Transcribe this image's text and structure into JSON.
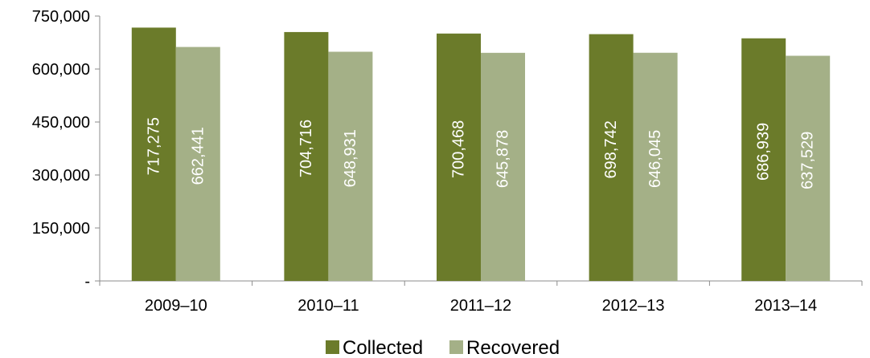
{
  "chart_data": {
    "type": "bar",
    "title": "",
    "xlabel": "",
    "ylabel": "",
    "categories": [
      "2009–10",
      "2010–11",
      "2011–12",
      "2012–13",
      "2013–14"
    ],
    "series": [
      {
        "name": "Collected",
        "color": "#6b7b2a",
        "values": [
          717275,
          704716,
          700468,
          698742,
          686939
        ],
        "labels": [
          "717,275",
          "704,716",
          "700,468",
          "698,742",
          "686,939"
        ]
      },
      {
        "name": "Recovered",
        "color": "#a4b087",
        "values": [
          662441,
          648931,
          645878,
          646045,
          637529
        ],
        "labels": [
          "662,441",
          "648,931",
          "645,878",
          "646,045",
          "637,529"
        ]
      }
    ],
    "ylim": [
      0,
      750000
    ],
    "yticks": [
      0,
      150000,
      300000,
      450000,
      600000,
      750000
    ],
    "ytick_labels": [
      "-",
      "150,000",
      "300,000",
      "450,000",
      "600,000",
      "750,000"
    ],
    "grid": false,
    "legend": "bottom",
    "data_labels": "inside-rotated"
  }
}
